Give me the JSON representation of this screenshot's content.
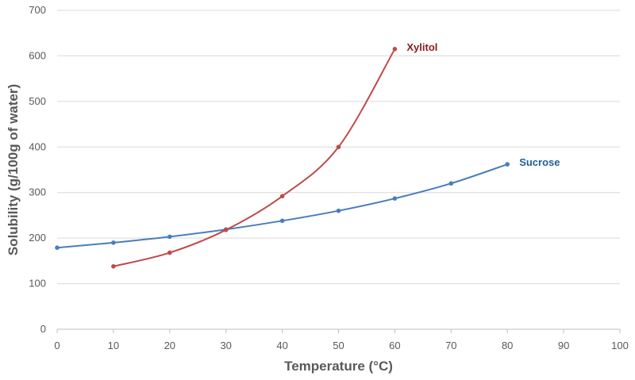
{
  "chart_data": {
    "type": "line",
    "xlabel": "Temperature (°C)",
    "ylabel": "Solubility (g/100g of water)",
    "xlim": [
      0,
      100
    ],
    "ylim": [
      0,
      700
    ],
    "xticks": [
      0,
      10,
      20,
      30,
      40,
      50,
      60,
      70,
      80,
      90,
      100
    ],
    "yticks": [
      0,
      100,
      200,
      300,
      400,
      500,
      600,
      700
    ],
    "grid": "horizontal",
    "legend": "none",
    "series": [
      {
        "name": "Sucrose",
        "color": "#4a7ebb",
        "label_color": "#1f6096",
        "x": [
          0,
          10,
          20,
          30,
          40,
          50,
          60,
          70,
          80
        ],
        "y": [
          179,
          190,
          203,
          219,
          238,
          260,
          287,
          320,
          362
        ]
      },
      {
        "name": "Xylitol",
        "color": "#be4b48",
        "label_color": "#8b1a1a",
        "x": [
          10,
          20,
          30,
          40,
          50,
          60
        ],
        "y": [
          138,
          168,
          218,
          292,
          400,
          615
        ]
      }
    ]
  }
}
